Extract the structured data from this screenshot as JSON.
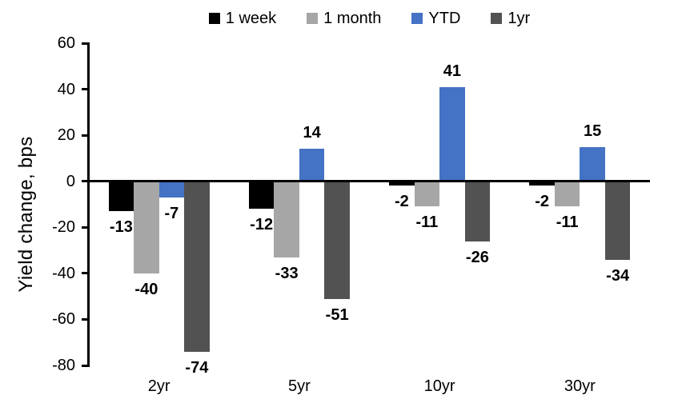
{
  "chart_data": {
    "type": "bar",
    "title": "",
    "xlabel": "",
    "ylabel": "Yield change, bps",
    "categories": [
      "2yr",
      "5yr",
      "10yr",
      "30yr"
    ],
    "series": [
      {
        "name": "1 week",
        "color": "#000000",
        "values": [
          -13,
          -12,
          -2,
          -2
        ]
      },
      {
        "name": "1 month",
        "color": "#A6A6A6",
        "values": [
          -40,
          -33,
          -11,
          -11
        ]
      },
      {
        "name": "YTD",
        "color": "#4472C4",
        "values": [
          -7,
          14,
          41,
          15
        ]
      },
      {
        "name": "1yr",
        "color": "#525252",
        "values": [
          -74,
          -51,
          -26,
          -34
        ]
      }
    ],
    "ylim": [
      -80,
      60
    ],
    "yticks": [
      60,
      40,
      20,
      0,
      -20,
      -40,
      -60,
      -80
    ],
    "grid": false,
    "legend_position": "top",
    "data_labels": true,
    "axis_color": "#000000"
  }
}
